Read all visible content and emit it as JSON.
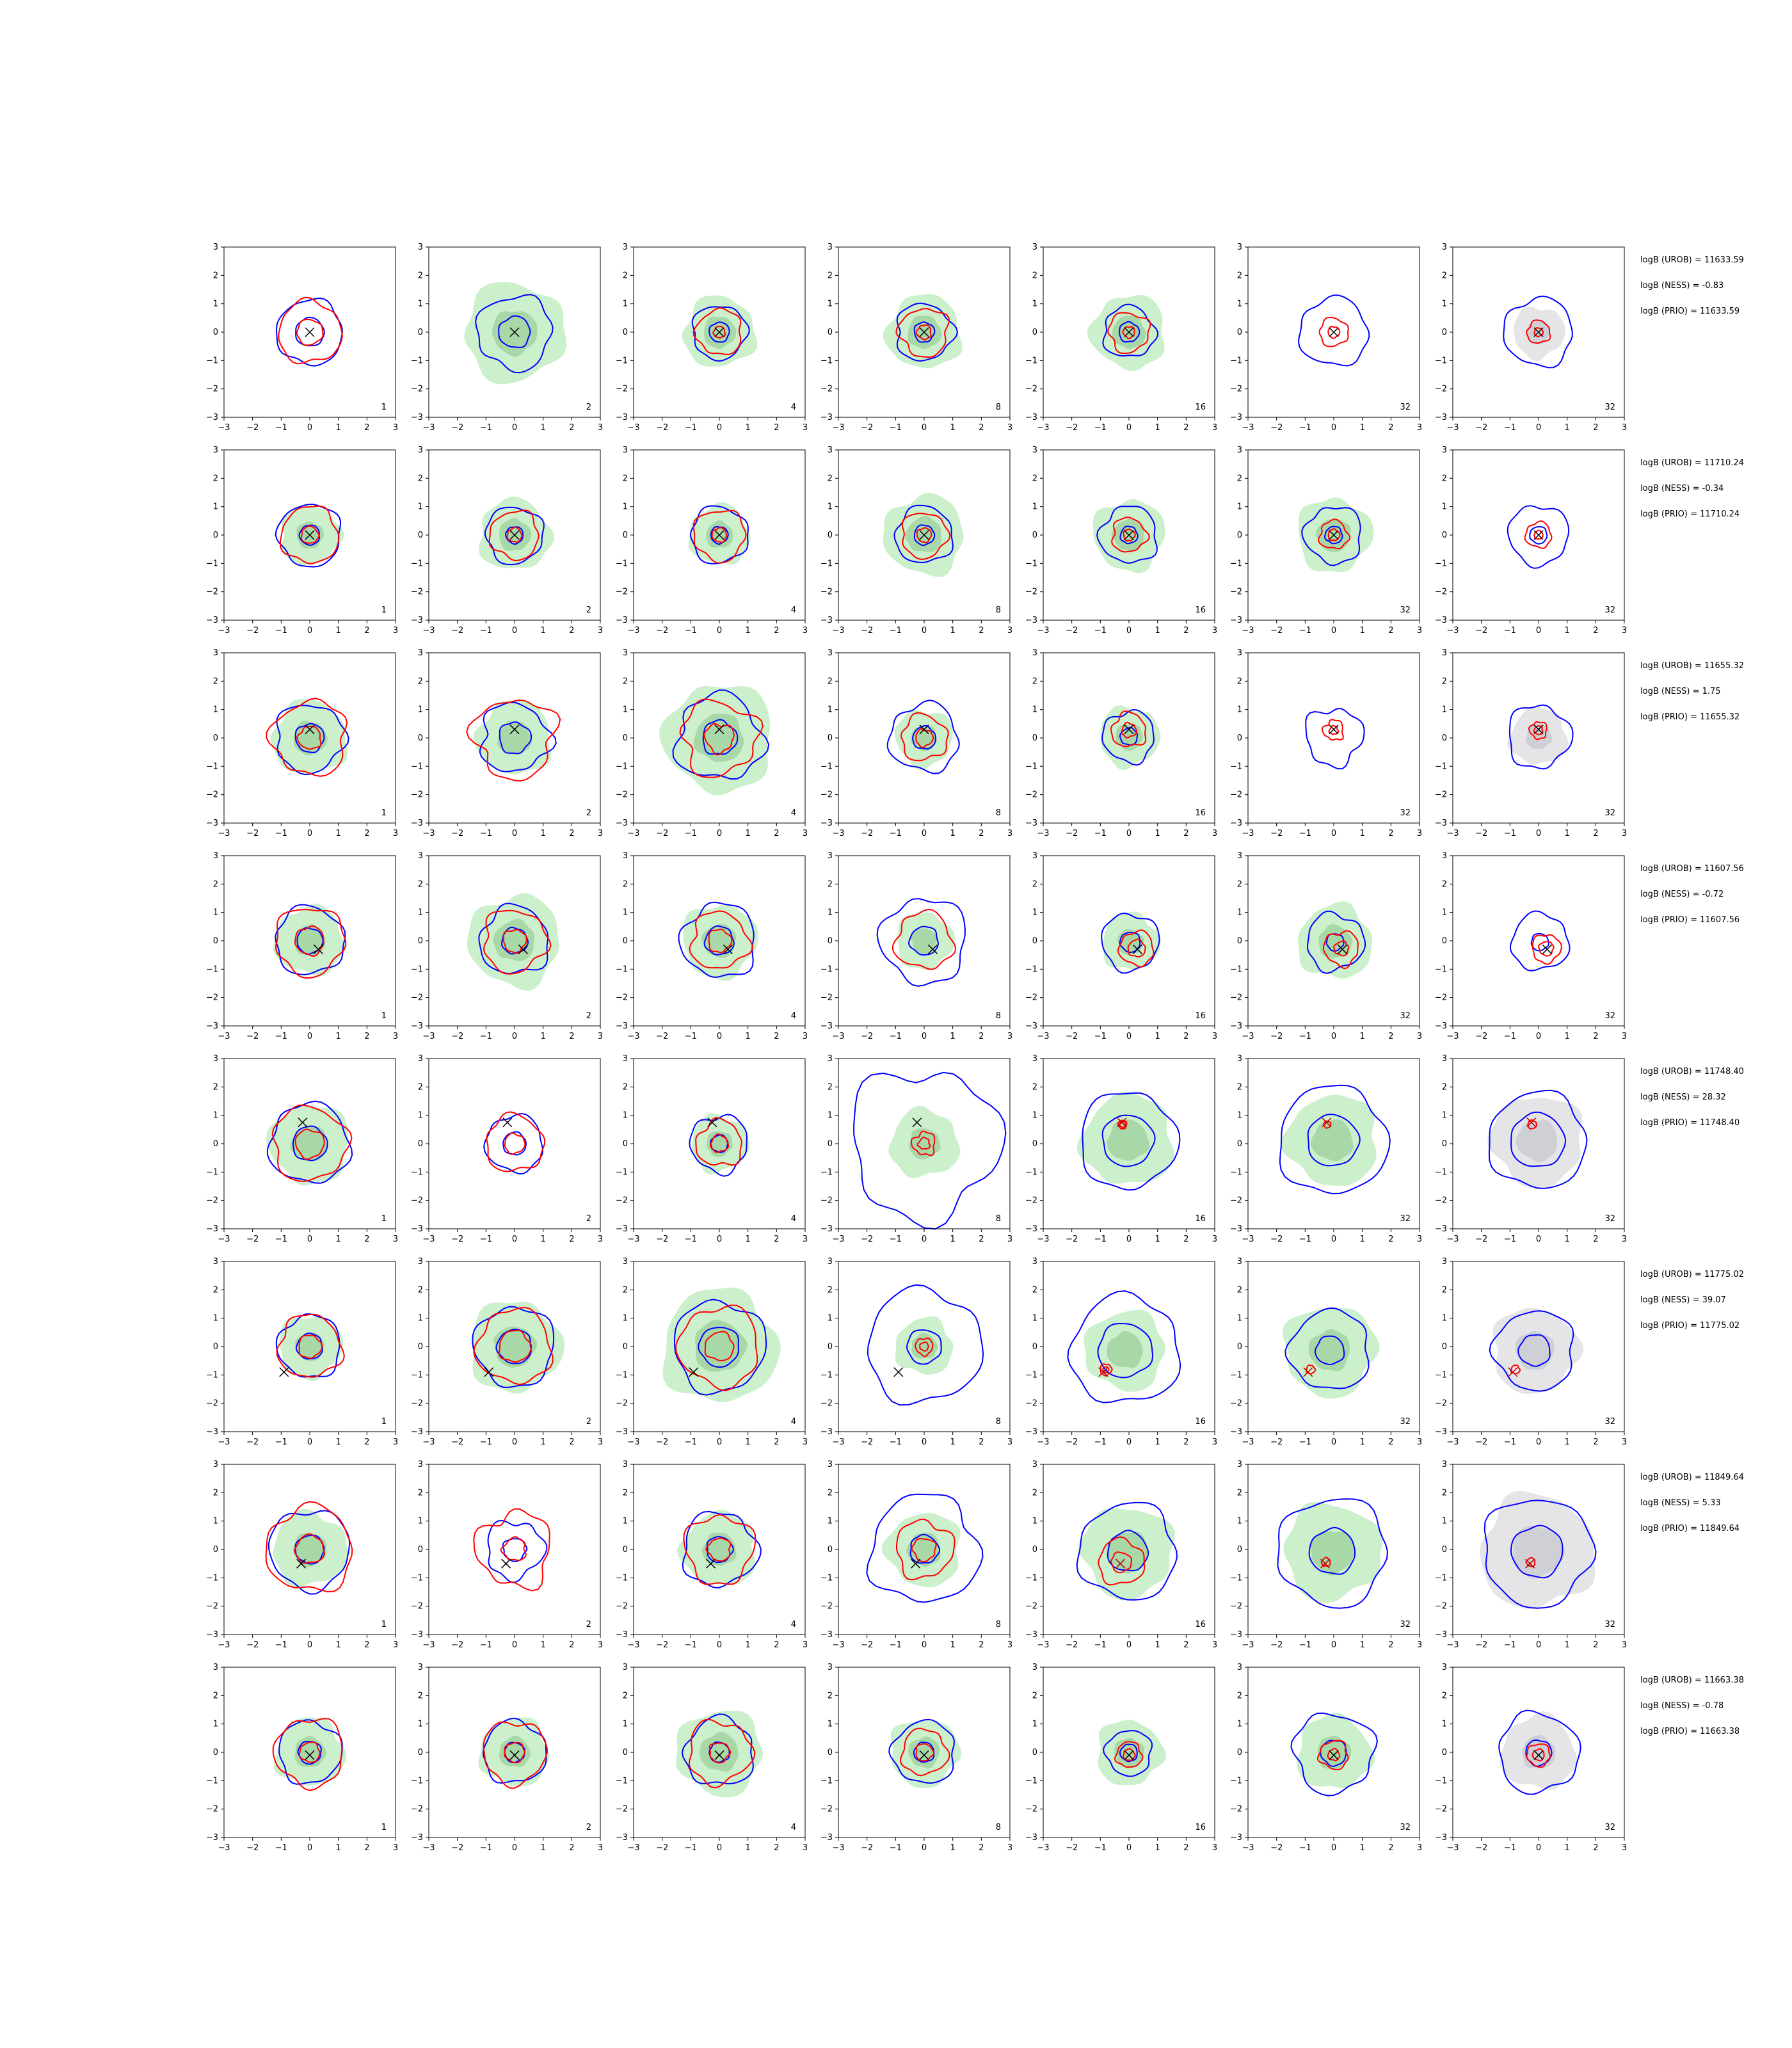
{
  "figure": {
    "axis_range": [
      -3,
      3
    ],
    "tick_labels": [
      "−3",
      "−2",
      "−1",
      "0",
      "1",
      "2",
      "3"
    ],
    "column_labels": [
      "1",
      "2",
      "4",
      "8",
      "16",
      "32",
      "32"
    ],
    "colors": {
      "green_fill": "#ccefcc",
      "green_inner": "#a8d8a8",
      "grey_fill": "#e5e5e8",
      "grey_inner": "#cfd0d6",
      "blue_contour": "#0000ff",
      "red_contour": "#ff0000",
      "marker": "#000000",
      "marker_red": "#b00000"
    }
  },
  "chart_data": {
    "type": "contour",
    "xlim": [
      -3,
      3
    ],
    "ylim": [
      -3,
      3
    ],
    "grid": false,
    "legend": "none",
    "panel_labels": [
      "1",
      "2",
      "4",
      "8",
      "16",
      "32",
      "32"
    ],
    "rows": [
      {
        "stats": [
          "logB (UROB) = 11633.59",
          "logB (NESS) = -0.83",
          "logB (PRIO) = 11633.59"
        ],
        "true_point": [
          0.0,
          0.0
        ],
        "panels": [
          {
            "outer": 1.15,
            "inner": 0.5,
            "red": 1.1,
            "red2": 0.45,
            "fill": 0.0,
            "wob": 0.1
          },
          {
            "outer": 1.3,
            "inner": 0.55,
            "red": 0,
            "red2": 0,
            "fill": 1.75,
            "wob": 0.15
          },
          {
            "outer": 0.95,
            "inner": 0.35,
            "red": 0.8,
            "red2": 0.2,
            "fill": 1.25,
            "wob": 0.12
          },
          {
            "outer": 1.0,
            "inner": 0.35,
            "red": 0.85,
            "red2": 0.25,
            "fill": 1.3,
            "wob": 0.15
          },
          {
            "outer": 0.9,
            "inner": 0.35,
            "red": 0.7,
            "red2": 0.2,
            "fill": 1.3,
            "wob": 0.15
          },
          {
            "outer": 1.2,
            "inner": 0.0,
            "red": 0.5,
            "red2": 0.2,
            "fill": 0,
            "wob": 0.12
          },
          {
            "outer": 1.2,
            "inner": 0.0,
            "red": 0.4,
            "red2": 0.15,
            "fill": 0.9,
            "wob": 0.12
          }
        ]
      },
      {
        "stats": [
          "logB (UROB) = 11710.24",
          "logB (NESS) = -0.34",
          "logB (PRIO) = 11710.24"
        ],
        "true_point": [
          0.0,
          0.0
        ],
        "panels": [
          {
            "outer": 1.1,
            "inner": 0.35,
            "red": 1.0,
            "red2": 0.3,
            "fill": 1.05,
            "wob": 0.1
          },
          {
            "outer": 1.0,
            "inner": 0.3,
            "red": 0.85,
            "red2": 0.25,
            "fill": 1.25,
            "wob": 0.12
          },
          {
            "outer": 1.0,
            "inner": 0.3,
            "red": 0.9,
            "red2": 0.25,
            "fill": 1.05,
            "wob": 0.12
          },
          {
            "outer": 1.0,
            "inner": 0.35,
            "red": 0.8,
            "red2": 0.25,
            "fill": 1.4,
            "wob": 0.12
          },
          {
            "outer": 1.0,
            "inner": 0.3,
            "red": 0.6,
            "red2": 0.2,
            "fill": 1.25,
            "wob": 0.15
          },
          {
            "outer": 1.0,
            "inner": 0.3,
            "red": 0.5,
            "red2": 0.2,
            "fill": 1.3,
            "wob": 0.15
          },
          {
            "outer": 1.05,
            "inner": 0.3,
            "red": 0.45,
            "red2": 0.15,
            "fill": 0,
            "wob": 0.12
          }
        ]
      },
      {
        "stats": [
          "logB (UROB) = 11655.32",
          "logB (NESS) = 1.75",
          "logB (PRIO) = 11655.32"
        ],
        "true_point": [
          0.0,
          0.3
        ],
        "panels": [
          {
            "outer": 1.2,
            "inner": 0.5,
            "red": 1.3,
            "red2": 0.4,
            "fill": 1.3,
            "wob": 0.15
          },
          {
            "outer": 1.2,
            "inner": 0.55,
            "red": 1.4,
            "red2": 0.0,
            "fill": 1.3,
            "wob": 0.2
          },
          {
            "outer": 1.5,
            "inner": 0.6,
            "red": 1.3,
            "red2": 0.5,
            "fill": 1.9,
            "wob": 0.2
          },
          {
            "outer": 1.2,
            "inner": 0.4,
            "red": 0.8,
            "red2": 0.3,
            "fill": 1.0,
            "wob": 0.15
          },
          {
            "outer": 0.9,
            "inner": 0.3,
            "red": 0.6,
            "red2": 0.25,
            "fill": 1.05,
            "wob": 0.15
          },
          {
            "outer": 1.0,
            "inner": 0.0,
            "red": 0.35,
            "red2": 0.15,
            "fill": 0,
            "wob": 0.2
          },
          {
            "outer": 1.1,
            "inner": 0.0,
            "red": 0.3,
            "red2": 0.15,
            "fill": 1.0,
            "wob": 0.15
          }
        ]
      },
      {
        "stats": [
          "logB (UROB) = 11607.56",
          "logB (NESS) = -0.72",
          "logB (PRIO) = 11607.56"
        ],
        "true_point": [
          0.3,
          -0.3
        ],
        "panels": [
          {
            "outer": 1.2,
            "inner": 0.45,
            "red": 1.2,
            "red2": 0.5,
            "fill": 1.2,
            "wob": 0.12
          },
          {
            "outer": 1.2,
            "inner": 0.45,
            "red": 1.1,
            "red2": 0.4,
            "fill": 1.6,
            "wob": 0.15
          },
          {
            "outer": 1.3,
            "inner": 0.5,
            "red": 1.0,
            "red2": 0.4,
            "fill": 1.3,
            "wob": 0.15
          },
          {
            "outer": 1.5,
            "inner": 0.5,
            "red": 1.0,
            "red2": 0.0,
            "fill": 1.0,
            "wob": 0.15
          },
          {
            "outer": 1.0,
            "inner": 0.35,
            "red": 0.6,
            "red2": 0.3,
            "fill": 1.0,
            "wob": 0.12
          },
          {
            "outer": 1.0,
            "inner": 0.3,
            "red": 0.6,
            "red2": 0.25,
            "fill": 1.3,
            "wob": 0.15
          },
          {
            "outer": 1.0,
            "inner": 0.3,
            "red": 0.5,
            "red2": 0.25,
            "fill": 0,
            "wob": 0.12
          }
        ]
      },
      {
        "stats": [
          "logB (UROB) = 11748.40",
          "logB (NESS) = 28.32",
          "logB (PRIO) = 11748.40"
        ],
        "true_point": [
          -0.25,
          0.75
        ],
        "panels": [
          {
            "outer": 1.4,
            "inner": 0.6,
            "red": 1.3,
            "red2": 0.5,
            "fill": 1.4,
            "wob": 0.12
          },
          {
            "outer": 1.0,
            "inner": 0.4,
            "red": 1.0,
            "red2": 0.35,
            "fill": 0,
            "wob": 0.12
          },
          {
            "outer": 1.0,
            "inner": 0.3,
            "red": 0.8,
            "red2": 0.3,
            "fill": 1.0,
            "wob": 0.15
          },
          {
            "outer": 2.6,
            "inner": 0.0,
            "red": 0.4,
            "red2": 0.2,
            "fill": 1.2,
            "wob": 0.2
          },
          {
            "outer": 1.7,
            "inner": 0.9,
            "red": 0.15,
            "red2": 0.1,
            "fill": 1.6,
            "wob": 0.1
          },
          {
            "outer": 1.9,
            "inner": 0.9,
            "red": 0.12,
            "red2": 0.0,
            "fill": 1.6,
            "wob": 0.1
          },
          {
            "outer": 1.7,
            "inner": 0.95,
            "red": 0.15,
            "red2": 0.0,
            "fill": 1.6,
            "wob": 0.1
          }
        ]
      },
      {
        "stats": [
          "logB (UROB) = 11775.02",
          "logB (NESS) = 39.07",
          "logB (PRIO) = 11775.02"
        ],
        "true_point": [
          -0.9,
          -0.9
        ],
        "panels": [
          {
            "outer": 1.1,
            "inner": 0.45,
            "red": 1.1,
            "red2": 0.4,
            "fill": 1.1,
            "wob": 0.12
          },
          {
            "outer": 1.4,
            "inner": 0.6,
            "red": 1.3,
            "red2": 0.55,
            "fill": 1.6,
            "wob": 0.12
          },
          {
            "outer": 1.6,
            "inner": 0.7,
            "red": 1.4,
            "red2": 0.5,
            "fill": 2.0,
            "wob": 0.12
          },
          {
            "outer": 2.0,
            "inner": 0.6,
            "red": 0.3,
            "red2": 0.15,
            "fill": 1.0,
            "wob": 0.12
          },
          {
            "outer": 1.9,
            "inner": 0.95,
            "red": 0.2,
            "red2": 0.1,
            "fill": 1.4,
            "wob": 0.12
          },
          {
            "outer": 1.4,
            "inner": 0.5,
            "red": 0.15,
            "red2": 0.0,
            "fill": 1.6,
            "wob": 0.12
          },
          {
            "outer": 1.4,
            "inner": 0.55,
            "red": 0.15,
            "red2": 0.0,
            "fill": 1.5,
            "wob": 0.12
          }
        ]
      },
      {
        "stats": [
          "logB (UROB) = 11849.64",
          "logB (NESS) = 5.33",
          "logB (PRIO) = 11849.64"
        ],
        "true_point": [
          -0.3,
          -0.5
        ],
        "panels": [
          {
            "outer": 1.4,
            "inner": 0.5,
            "red": 1.5,
            "red2": 0.5,
            "fill": 1.3,
            "wob": 0.12
          },
          {
            "outer": 1.0,
            "inner": 0.4,
            "red": 1.3,
            "red2": 0.4,
            "fill": 0,
            "wob": 0.2
          },
          {
            "outer": 1.3,
            "inner": 0.45,
            "red": 1.2,
            "red2": 0.4,
            "fill": 1.3,
            "wob": 0.15
          },
          {
            "outer": 1.9,
            "inner": 0.5,
            "red": 1.0,
            "red2": 0.4,
            "fill": 1.3,
            "wob": 0.15
          },
          {
            "outer": 1.7,
            "inner": 0.7,
            "red": 0.8,
            "red2": 0.35,
            "fill": 1.6,
            "wob": 0.12
          },
          {
            "outer": 1.9,
            "inner": 0.8,
            "red": 0.15,
            "red2": 0.0,
            "fill": 1.7,
            "wob": 0.12
          },
          {
            "outer": 1.9,
            "inner": 0.9,
            "red": 0.15,
            "red2": 0.0,
            "fill": 2.0,
            "wob": 0.12
          }
        ]
      },
      {
        "stats": [
          "logB (UROB) = 11663.38",
          "logB (NESS) = -0.78",
          "logB (PRIO) = 11663.38"
        ],
        "true_point": [
          0.0,
          -0.1
        ],
        "panels": [
          {
            "outer": 1.1,
            "inner": 0.4,
            "red": 1.2,
            "red2": 0.35,
            "fill": 1.2,
            "wob": 0.12
          },
          {
            "outer": 1.1,
            "inner": 0.35,
            "red": 1.1,
            "red2": 0.35,
            "fill": 1.2,
            "wob": 0.12
          },
          {
            "outer": 1.2,
            "inner": 0.35,
            "red": 1.1,
            "red2": 0.35,
            "fill": 1.5,
            "wob": 0.15
          },
          {
            "outer": 1.1,
            "inner": 0.35,
            "red": 0.8,
            "red2": 0.3,
            "fill": 1.2,
            "wob": 0.12
          },
          {
            "outer": 0.8,
            "inner": 0.3,
            "red": 0.45,
            "red2": 0.2,
            "fill": 1.15,
            "wob": 0.12
          },
          {
            "outer": 1.4,
            "inner": 0.45,
            "red": 0.5,
            "red2": 0.2,
            "fill": 1.3,
            "wob": 0.15
          },
          {
            "outer": 1.4,
            "inner": 0.45,
            "red": 0.4,
            "red2": 0.2,
            "fill": 1.3,
            "wob": 0.12
          }
        ]
      }
    ]
  }
}
